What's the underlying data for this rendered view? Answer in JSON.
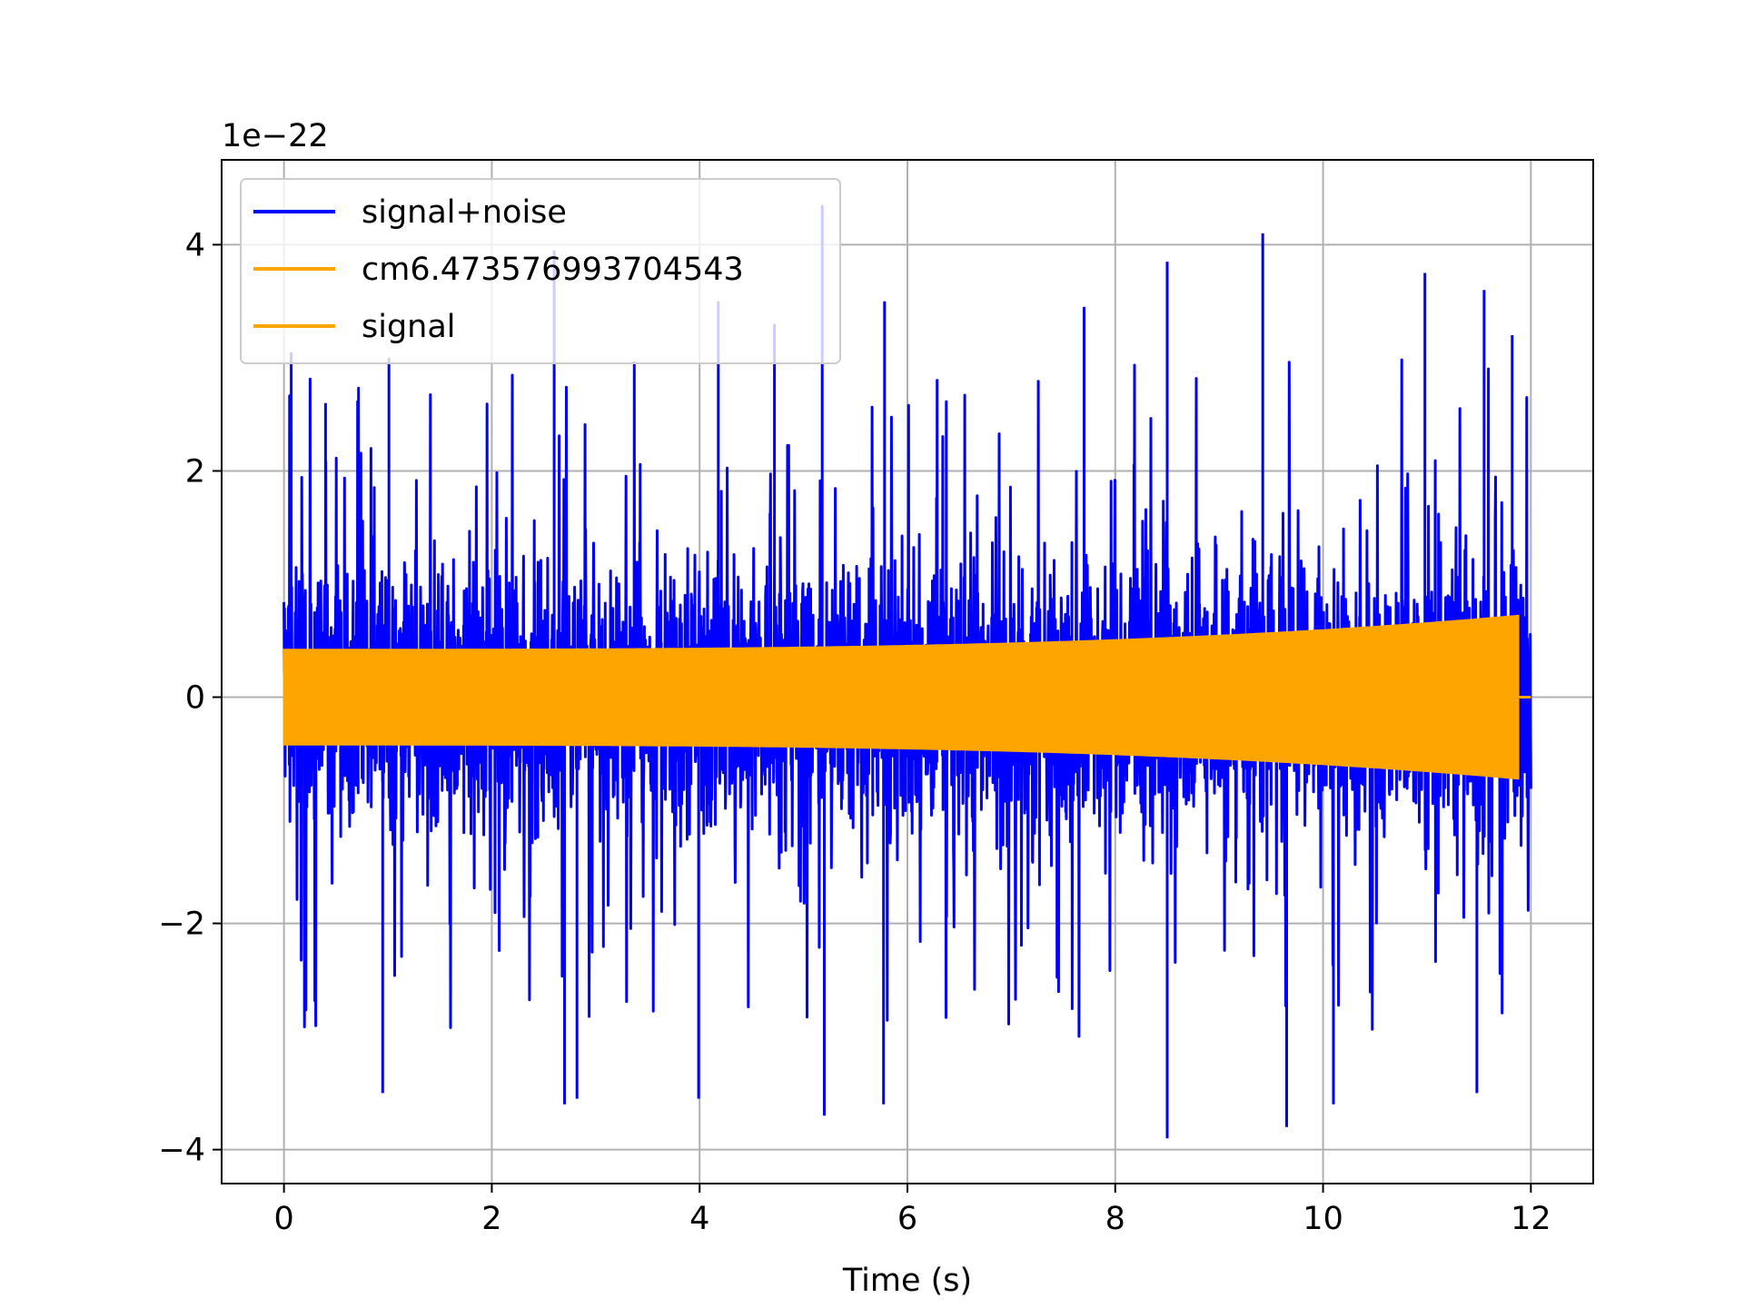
{
  "chart_data": {
    "type": "line",
    "title": "",
    "xlabel": "Time (s)",
    "ylabel": "",
    "y_offset_label": "1e−22",
    "xlim": [
      -0.6,
      12.6
    ],
    "ylim": [
      -4.3,
      4.75
    ],
    "x_ticks": [
      0,
      2,
      4,
      6,
      8,
      10,
      12
    ],
    "y_ticks": [
      -4,
      -2,
      0,
      2,
      4
    ],
    "y_tick_labels": [
      "−4",
      "−2",
      "0",
      "2",
      "4"
    ],
    "grid": true,
    "legend_placement": "upper-left",
    "series": [
      {
        "name": "signal+noise",
        "color": "#0000ff",
        "x_range": [
          0,
          12
        ],
        "typical_range": [
          -1.5,
          1.5
        ],
        "peaks": [
          [
            0.07,
            3.05
          ],
          [
            0.4,
            2.6
          ],
          [
            1.01,
            3.0
          ],
          [
            2.6,
            3.95
          ],
          [
            4.18,
            3.5
          ],
          [
            4.72,
            3.3
          ],
          [
            5.18,
            4.35
          ],
          [
            5.78,
            3.5
          ],
          [
            7.7,
            3.45
          ],
          [
            8.5,
            3.85
          ],
          [
            9.42,
            4.1
          ],
          [
            10.98,
            3.75
          ],
          [
            11.55,
            3.6
          ],
          [
            11.82,
            3.2
          ]
        ],
        "troughs": [
          [
            0.95,
            -3.5
          ],
          [
            2.7,
            -3.6
          ],
          [
            2.82,
            -3.55
          ],
          [
            3.99,
            -3.55
          ],
          [
            5.2,
            -3.7
          ],
          [
            5.77,
            -3.6
          ],
          [
            8.5,
            -3.9
          ],
          [
            9.65,
            -3.8
          ],
          [
            10.1,
            -3.6
          ],
          [
            11.48,
            -3.5
          ]
        ]
      },
      {
        "name": "cm6.473576993704543",
        "color": "#ffa500",
        "x_range": [
          0,
          12
        ],
        "amplitude_start": 0.42,
        "amplitude_end": 0.72
      },
      {
        "name": "signal",
        "color": "#ffa500",
        "x_range": [
          0,
          12
        ],
        "amplitude_start": 0.42,
        "amplitude_end": 0.72,
        "signal_end": 11.88
      }
    ]
  }
}
